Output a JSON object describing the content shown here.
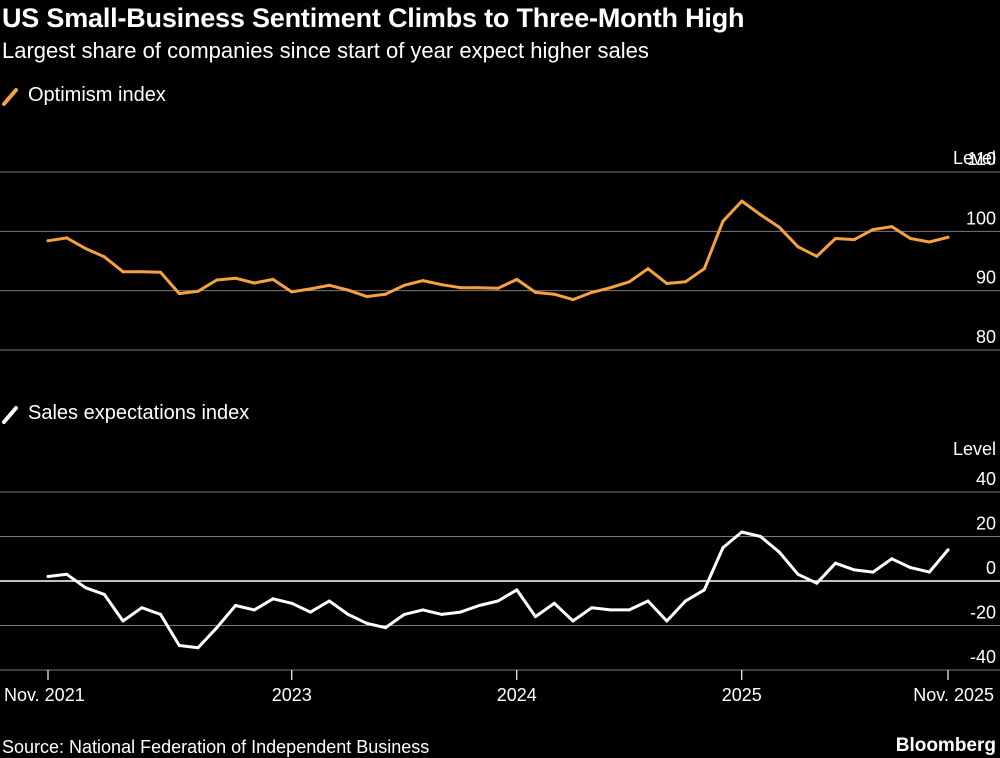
{
  "title": "US Small-Business Sentiment Climbs to Three-Month High",
  "subtitle": "Largest share of companies since start of year expect higher sales",
  "source": "Source: National Federation of Independent Business",
  "brand": "Bloomberg",
  "colors": {
    "background": "#000000",
    "optimism": "#f5a142",
    "sales": "#ffffff",
    "grid": "#7a7a7a"
  },
  "chart_data": [
    {
      "type": "line",
      "legend": "Optimism index",
      "unit_label": "Level",
      "ylim": [
        80,
        110
      ],
      "yticks": [
        110,
        100,
        90,
        80
      ],
      "x_ticks": [
        {
          "label": "Nov. 2021",
          "index": 0
        },
        {
          "label": "2023",
          "index": 13
        },
        {
          "label": "2024",
          "index": 25
        },
        {
          "label": "2025",
          "index": 37
        },
        {
          "label": "Nov. 2025",
          "index": 48
        }
      ],
      "series": [
        {
          "name": "Optimism index",
          "values": [
            98.4,
            98.9,
            97.1,
            95.7,
            93.2,
            93.2,
            93.1,
            89.5,
            89.9,
            91.8,
            92.1,
            91.3,
            91.9,
            89.8,
            90.3,
            90.9,
            90.1,
            89.0,
            89.4,
            90.9,
            91.7,
            91.0,
            90.5,
            90.5,
            90.4,
            91.9,
            89.7,
            89.4,
            88.5,
            89.7,
            90.5,
            91.5,
            93.7,
            91.2,
            91.5,
            93.7,
            101.7,
            105.1,
            102.8,
            100.7,
            97.4,
            95.8,
            98.8,
            98.6,
            100.3,
            100.8,
            98.8,
            98.2,
            99.0
          ]
        }
      ]
    },
    {
      "type": "line",
      "legend": "Sales expectations index",
      "unit_label": "Level",
      "ylim": [
        -40,
        40
      ],
      "yticks": [
        40,
        20,
        0,
        -20,
        -40
      ],
      "x_ticks": [
        {
          "label": "Nov. 2021",
          "index": 0
        },
        {
          "label": "2023",
          "index": 13
        },
        {
          "label": "2024",
          "index": 25
        },
        {
          "label": "2025",
          "index": 37
        },
        {
          "label": "Nov. 2025",
          "index": 48
        }
      ],
      "series": [
        {
          "name": "Sales expectations index",
          "values": [
            2,
            3,
            -3,
            -6,
            -18,
            -12,
            -15,
            -29,
            -30,
            -21,
            -11,
            -13,
            -8,
            -10,
            -14,
            -9,
            -15,
            -19,
            -21,
            -15,
            -13,
            -15,
            -14,
            -11,
            -9,
            -4,
            -16,
            -10,
            -18,
            -12,
            -13,
            -13,
            -9,
            -18,
            -9,
            -4,
            15,
            22,
            20,
            13,
            3,
            -1,
            8,
            5,
            4,
            10,
            6,
            4,
            14
          ]
        }
      ]
    }
  ]
}
